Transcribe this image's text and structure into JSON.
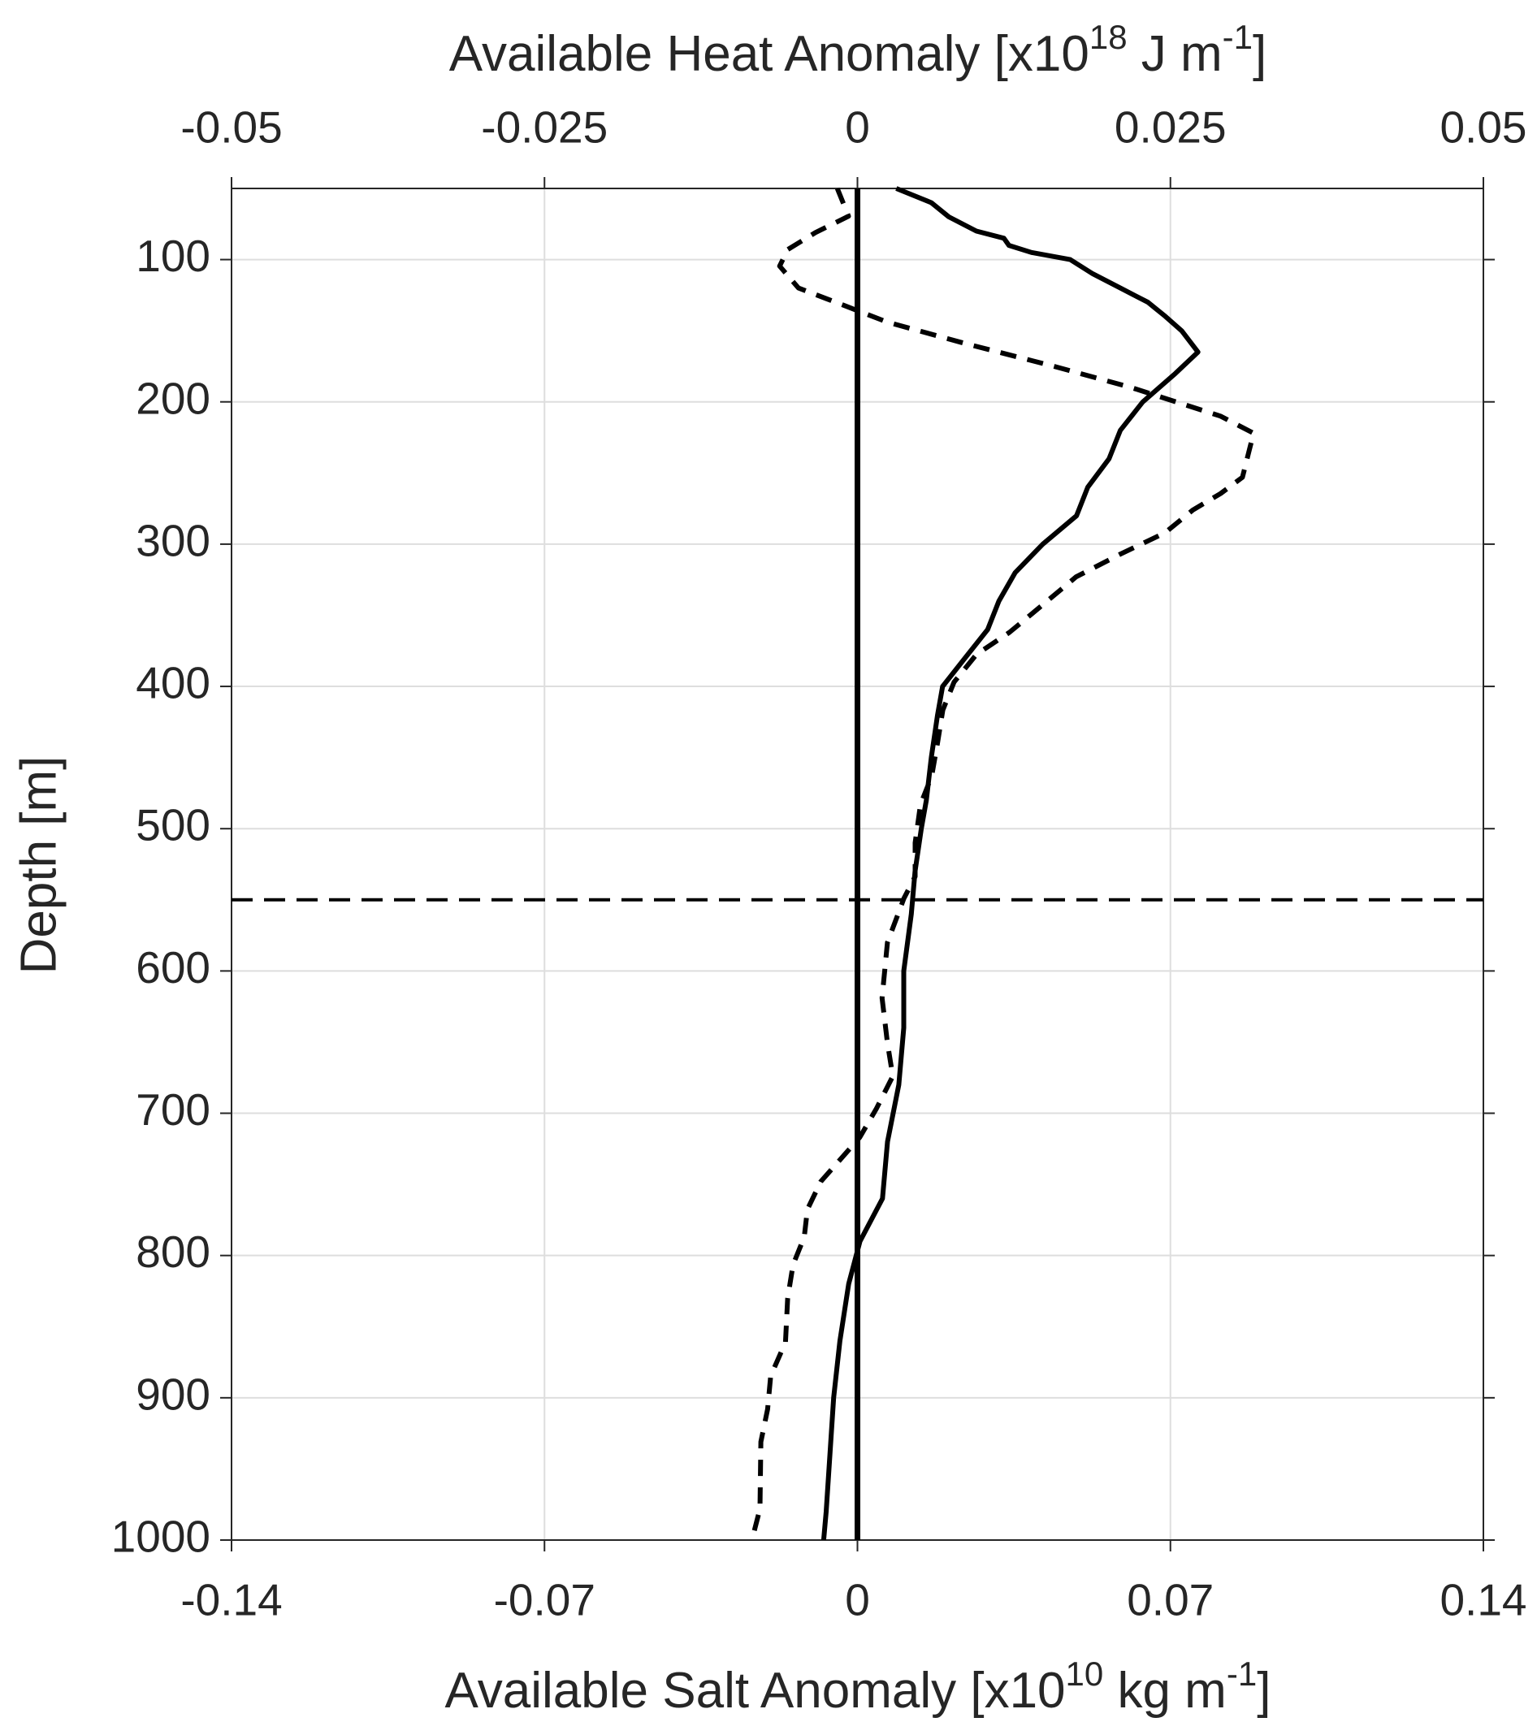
{
  "chart_data": {
    "type": "line",
    "x2label": [
      "Available Heat Anomaly [x10",
      "18",
      " J m",
      "-1",
      "]"
    ],
    "xlabel": [
      "Available Salt Anomaly [x10",
      "10",
      " kg m",
      "-1",
      "]"
    ],
    "ylabel": "Depth [m]",
    "xlim": [
      -0.14,
      0.14
    ],
    "xticks": [
      -0.14,
      -0.07,
      0,
      0.07,
      0.14
    ],
    "x2lim": [
      -0.05,
      0.05
    ],
    "x2ticks": [
      -0.05,
      -0.025,
      0,
      0.025,
      0.05
    ],
    "ylim": [
      50,
      1000
    ],
    "yticks": [
      100,
      200,
      300,
      400,
      500,
      600,
      700,
      800,
      900,
      1000
    ],
    "y_reversed": true,
    "grid": true,
    "vline": 0,
    "hline": 550,
    "series": [
      {
        "axis": "x2",
        "color": "#000000",
        "dash": "solid",
        "y": [
          50,
          60,
          70,
          80,
          85,
          90,
          95,
          100,
          110,
          120,
          130,
          140,
          150,
          165,
          180,
          200,
          220,
          240,
          260,
          280,
          300,
          320,
          340,
          360,
          380,
          400,
          420,
          450,
          480,
          500,
          530,
          560,
          600,
          640,
          680,
          720,
          760,
          790,
          820,
          860,
          900,
          940,
          980,
          1000
        ],
        "values": [
          0.0031,
          0.0059,
          0.0073,
          0.0095,
          0.0117,
          0.0121,
          0.0139,
          0.017,
          0.0188,
          0.021,
          0.0232,
          0.0246,
          0.0259,
          0.0272,
          0.0254,
          0.0228,
          0.021,
          0.0201,
          0.0184,
          0.0175,
          0.0148,
          0.0126,
          0.0113,
          0.0104,
          0.0086,
          0.0068,
          0.0064,
          0.0059,
          0.0055,
          0.0051,
          0.0046,
          0.0043,
          0.0037,
          0.0037,
          0.0033,
          0.0024,
          0.002,
          0.0002,
          -0.0007,
          -0.0014,
          -0.0019,
          -0.0022,
          -0.0025,
          -0.0027
        ]
      },
      {
        "axis": "x",
        "color": "#000000",
        "dash": "dashed",
        "y": [
          50,
          69.5,
          81,
          93,
          104.6,
          120,
          132,
          144,
          159,
          175,
          190,
          210,
          222,
          253,
          264.5,
          276,
          292,
          307,
          323,
          342.5,
          362,
          377.6,
          397,
          416.6,
          440,
          463,
          483,
          510,
          533.6,
          549,
          580,
          619,
          650.6,
          674,
          697,
          717,
          748,
          767.6,
          787,
          806.6,
          830,
          861,
          884.6,
          908,
          931,
          978,
          1000
        ],
        "values": [
          -0.0045,
          -0.002,
          -0.0094,
          -0.0156,
          -0.0174,
          -0.0132,
          -0.0032,
          0.0067,
          0.0241,
          0.0439,
          0.0613,
          0.0812,
          0.0886,
          0.0861,
          0.0812,
          0.075,
          0.0688,
          0.0588,
          0.0489,
          0.0415,
          0.034,
          0.0266,
          0.0216,
          0.0191,
          0.0179,
          0.0166,
          0.0141,
          0.0129,
          0.0129,
          0.0104,
          0.0067,
          0.0055,
          0.0067,
          0.0079,
          0.0042,
          0.0005,
          -0.0082,
          -0.0112,
          -0.0119,
          -0.0144,
          -0.0156,
          -0.0161,
          -0.0194,
          -0.0201,
          -0.0216,
          -0.0218,
          -0.0236
        ]
      }
    ]
  }
}
